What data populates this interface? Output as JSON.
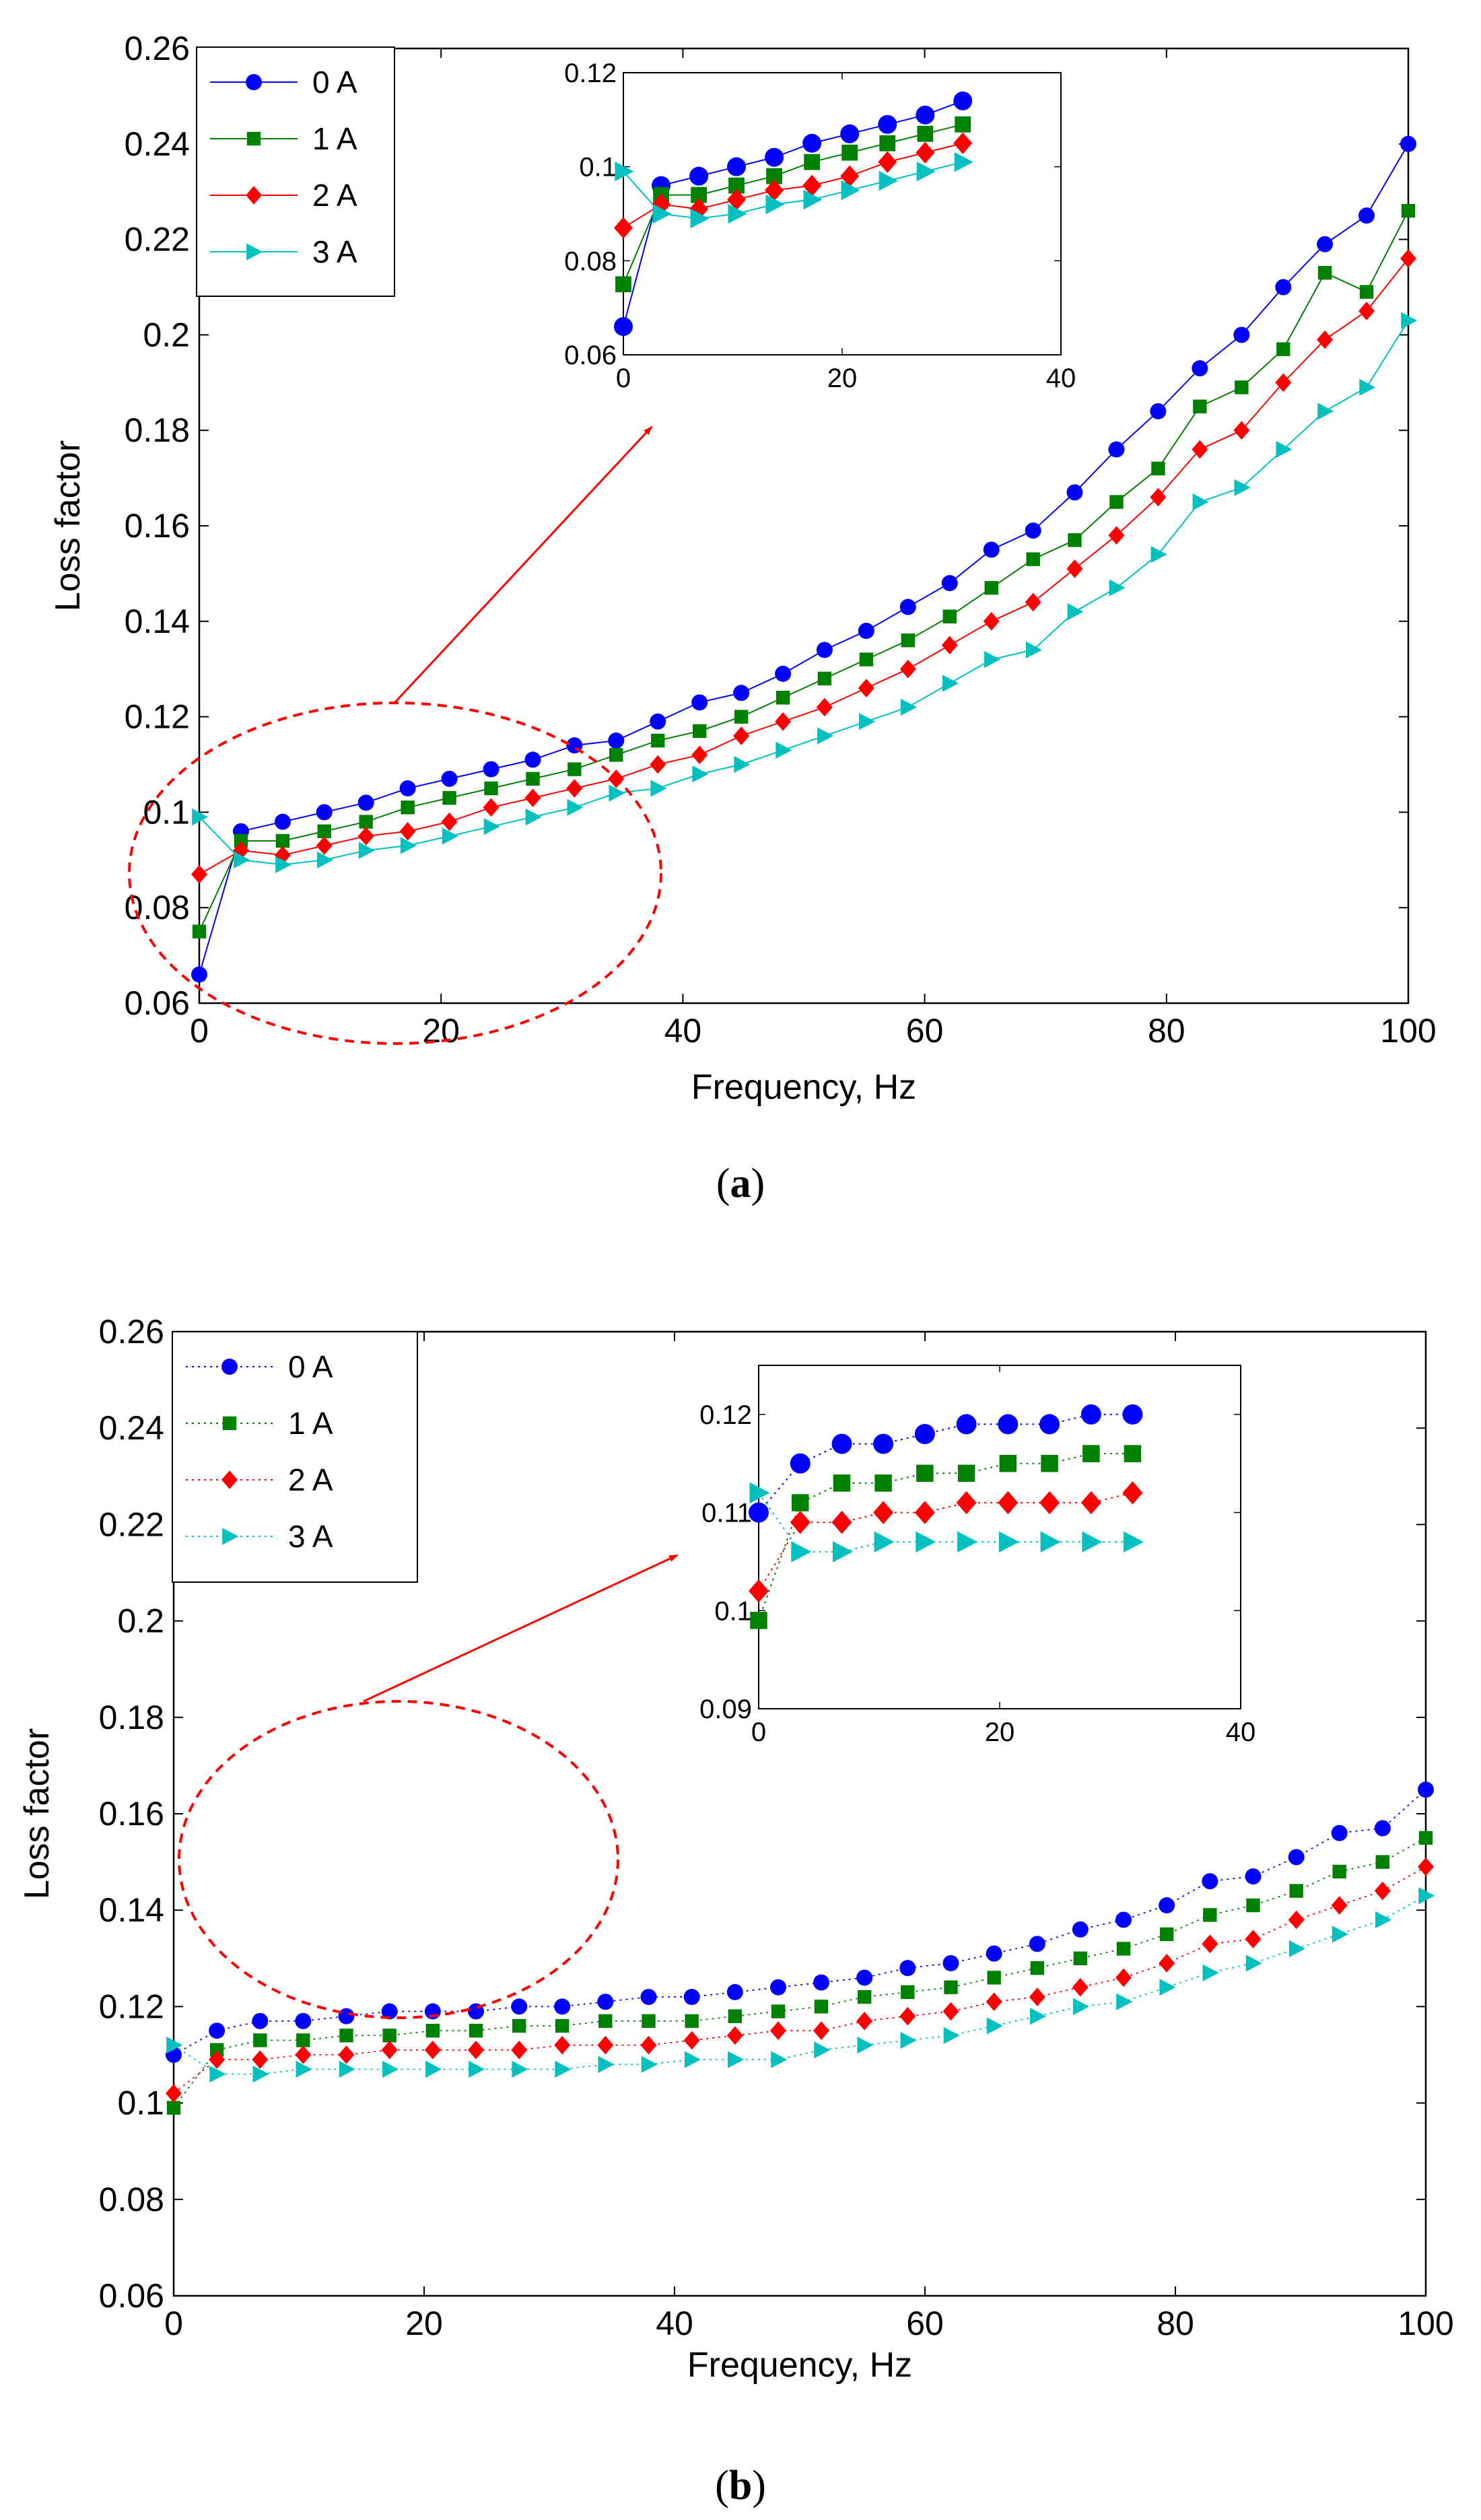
{
  "figure": {
    "captions": [
      "(a)",
      "(b)"
    ],
    "caption_parts": [
      {
        "open": "(",
        "letter": "a",
        "close": ")"
      },
      {
        "open": "(",
        "letter": "b",
        "close": ")"
      }
    ]
  },
  "styles": {
    "series_colors": [
      "#0000ff",
      "#008000",
      "#ff0000",
      "#00c0c0"
    ],
    "annotation_color": "#ff0000"
  },
  "chart_data": [
    {
      "id": "a",
      "type": "line",
      "xlabel": "Frequency, Hz",
      "ylabel": "Loss factor",
      "xlim": [
        0,
        100
      ],
      "ylim": [
        0.06,
        0.26
      ],
      "xticks": [
        0,
        20,
        40,
        60,
        80,
        100
      ],
      "yticks": [
        0.06,
        0.08,
        0.1,
        0.12,
        0.14,
        0.16,
        0.18,
        0.2,
        0.22,
        0.24,
        0.26
      ],
      "xtick_labels": [
        "0",
        "20",
        "40",
        "60",
        "80",
        "100"
      ],
      "ytick_labels": [
        "0.06",
        "0.08",
        "0.1",
        "0.12",
        "0.14",
        "0.16",
        "0.18",
        "0.2",
        "0.22",
        "0.24",
        "0.26"
      ],
      "line_style": "solid",
      "legend_position": "top-left",
      "x": [
        0,
        3.45,
        6.9,
        10.34,
        13.79,
        17.24,
        20.69,
        24.14,
        27.59,
        31.03,
        34.48,
        37.93,
        41.38,
        44.83,
        48.28,
        51.72,
        55.17,
        58.62,
        62.07,
        65.52,
        68.97,
        72.41,
        75.86,
        79.31,
        82.76,
        86.21,
        89.66,
        93.1,
        96.55,
        100
      ],
      "series": [
        {
          "name": "0 A",
          "marker": "circle",
          "values": [
            0.066,
            0.096,
            0.098,
            0.1,
            0.102,
            0.105,
            0.107,
            0.109,
            0.111,
            0.114,
            0.115,
            0.119,
            0.123,
            0.125,
            0.129,
            0.134,
            0.138,
            0.143,
            0.148,
            0.155,
            0.159,
            0.167,
            0.176,
            0.184,
            0.193,
            0.2,
            0.21,
            0.219,
            0.225,
            0.24
          ]
        },
        {
          "name": "1 A",
          "marker": "square",
          "values": [
            0.075,
            0.094,
            0.094,
            0.096,
            0.098,
            0.101,
            0.103,
            0.105,
            0.107,
            0.109,
            0.112,
            0.115,
            0.117,
            0.12,
            0.124,
            0.128,
            0.132,
            0.136,
            0.141,
            0.147,
            0.153,
            0.157,
            0.165,
            0.172,
            0.185,
            0.189,
            0.197,
            0.213,
            0.209,
            0.226
          ]
        },
        {
          "name": "2 A",
          "marker": "diamond",
          "values": [
            0.087,
            0.092,
            0.091,
            0.093,
            0.095,
            0.096,
            0.098,
            0.101,
            0.103,
            0.105,
            0.107,
            0.11,
            0.112,
            0.116,
            0.119,
            0.122,
            0.126,
            0.13,
            0.135,
            0.14,
            0.144,
            0.151,
            0.158,
            0.166,
            0.176,
            0.18,
            0.19,
            0.199,
            0.205,
            0.216
          ]
        },
        {
          "name": "3 A",
          "marker": "triangle-right",
          "values": [
            0.099,
            0.09,
            0.089,
            0.09,
            0.092,
            0.093,
            0.095,
            0.097,
            0.099,
            0.101,
            0.104,
            0.105,
            0.108,
            0.11,
            0.113,
            0.116,
            0.119,
            0.122,
            0.127,
            0.132,
            0.134,
            0.142,
            0.147,
            0.154,
            0.165,
            0.168,
            0.176,
            0.184,
            0.189,
            0.203
          ]
        }
      ],
      "inset": {
        "xlim": [
          0,
          40
        ],
        "ylim": [
          0.06,
          0.12
        ],
        "xticks": [
          0,
          20,
          40
        ],
        "yticks": [
          0.06,
          0.08,
          0.1,
          0.12
        ],
        "xtick_labels": [
          "0",
          "20",
          "40"
        ],
        "ytick_labels": [
          "0.06",
          "0.08",
          "0.1",
          "0.12"
        ],
        "x_count": 10
      },
      "annotation": {
        "type": "ellipse-with-arrow",
        "region_x": [
          0,
          34
        ],
        "region_y": [
          0.06,
          0.12
        ]
      }
    },
    {
      "id": "b",
      "type": "line",
      "xlabel": "Frequency, Hz",
      "ylabel": "Loss factor",
      "xlim": [
        0,
        100
      ],
      "ylim": [
        0.06,
        0.26
      ],
      "xticks": [
        0,
        20,
        40,
        60,
        80,
        100
      ],
      "yticks": [
        0.06,
        0.08,
        0.1,
        0.12,
        0.14,
        0.16,
        0.18,
        0.2,
        0.22,
        0.24,
        0.26
      ],
      "xtick_labels": [
        "0",
        "20",
        "40",
        "60",
        "80",
        "100"
      ],
      "ytick_labels": [
        "0.06",
        "0.08",
        "0.1",
        "0.12",
        "0.14",
        "0.16",
        "0.18",
        "0.2",
        "0.22",
        "0.24",
        "0.26"
      ],
      "line_style": "dotted",
      "legend_position": "top-left",
      "x": [
        0,
        3.45,
        6.9,
        10.34,
        13.79,
        17.24,
        20.69,
        24.14,
        27.59,
        31.03,
        34.48,
        37.93,
        41.38,
        44.83,
        48.28,
        51.72,
        55.17,
        58.62,
        62.07,
        65.52,
        68.97,
        72.41,
        75.86,
        79.31,
        82.76,
        86.21,
        89.66,
        93.1,
        96.55,
        100
      ],
      "series": [
        {
          "name": "0 A",
          "marker": "circle",
          "values": [
            0.11,
            0.115,
            0.117,
            0.117,
            0.118,
            0.119,
            0.119,
            0.119,
            0.12,
            0.12,
            0.121,
            0.122,
            0.122,
            0.123,
            0.124,
            0.125,
            0.126,
            0.128,
            0.129,
            0.131,
            0.133,
            0.136,
            0.138,
            0.141,
            0.146,
            0.147,
            0.151,
            0.156,
            0.157,
            0.165
          ]
        },
        {
          "name": "1 A",
          "marker": "square",
          "values": [
            0.099,
            0.111,
            0.113,
            0.113,
            0.114,
            0.114,
            0.115,
            0.115,
            0.116,
            0.116,
            0.117,
            0.117,
            0.117,
            0.118,
            0.119,
            0.12,
            0.122,
            0.123,
            0.124,
            0.126,
            0.128,
            0.13,
            0.132,
            0.135,
            0.139,
            0.141,
            0.144,
            0.148,
            0.15,
            0.155
          ]
        },
        {
          "name": "2 A",
          "marker": "diamond",
          "values": [
            0.102,
            0.109,
            0.109,
            0.11,
            0.11,
            0.111,
            0.111,
            0.111,
            0.111,
            0.112,
            0.112,
            0.112,
            0.113,
            0.114,
            0.115,
            0.115,
            0.117,
            0.118,
            0.119,
            0.121,
            0.122,
            0.124,
            0.126,
            0.129,
            0.133,
            0.134,
            0.138,
            0.141,
            0.144,
            0.149
          ]
        },
        {
          "name": "3 A",
          "marker": "triangle-right",
          "values": [
            0.112,
            0.106,
            0.106,
            0.107,
            0.107,
            0.107,
            0.107,
            0.107,
            0.107,
            0.107,
            0.108,
            0.108,
            0.109,
            0.109,
            0.109,
            0.111,
            0.112,
            0.113,
            0.114,
            0.116,
            0.118,
            0.12,
            0.121,
            0.124,
            0.127,
            0.129,
            0.132,
            0.135,
            0.138,
            0.143
          ]
        }
      ],
      "inset": {
        "xlim": [
          0,
          40
        ],
        "ylim": [
          0.09,
          0.125
        ],
        "xticks": [
          0,
          20,
          40
        ],
        "yticks": [
          0.09,
          0.1,
          0.11,
          0.12
        ],
        "xtick_labels": [
          "0",
          "20",
          "40"
        ],
        "ytick_labels": [
          "0.09",
          "0.1",
          "0.11",
          "0.12"
        ],
        "x_count": 10
      },
      "annotation": {
        "type": "ellipse-with-arrow",
        "region_x": [
          0,
          34
        ],
        "region_y": [
          0.09,
          0.12
        ]
      }
    }
  ]
}
